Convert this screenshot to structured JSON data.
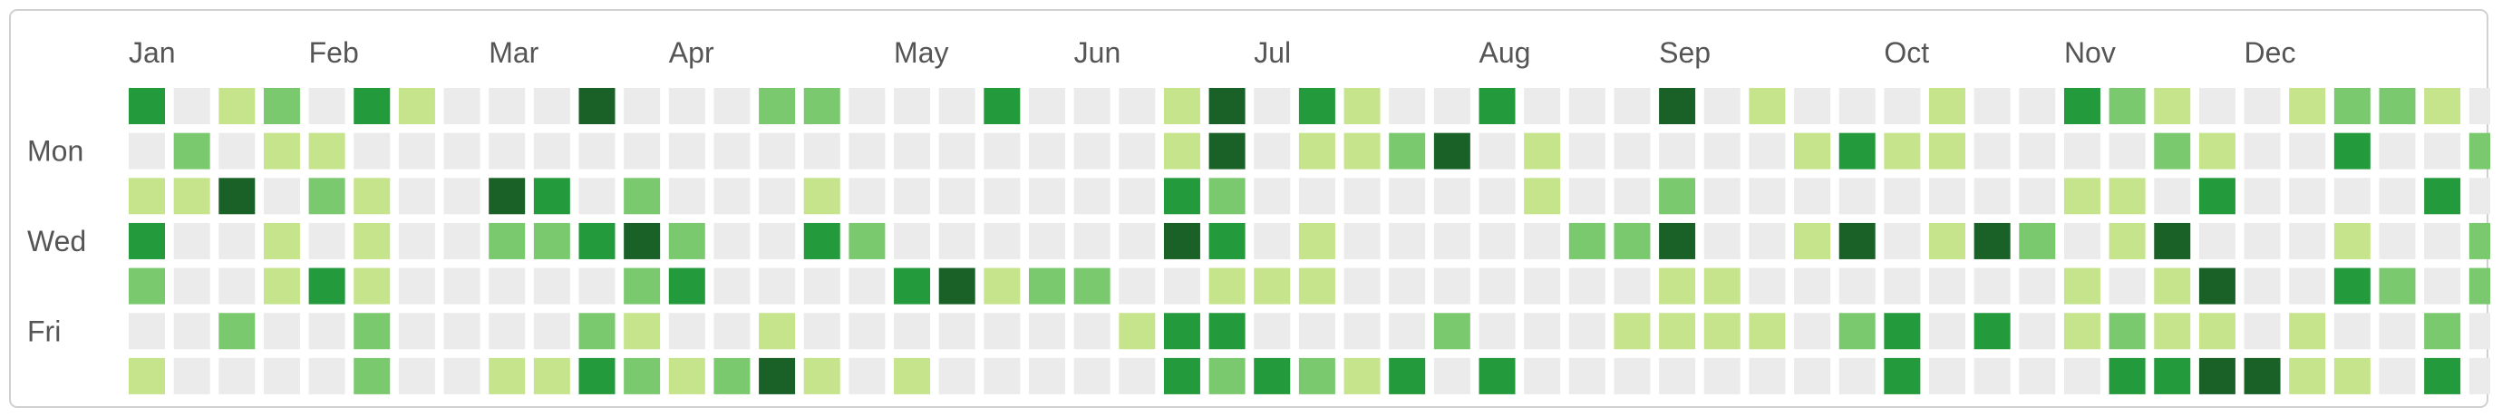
{
  "chart_data": {
    "type": "heatmap",
    "title": "",
    "months": [
      "Jan",
      "Feb",
      "Mar",
      "Apr",
      "May",
      "Jun",
      "Jul",
      "Aug",
      "Sep",
      "Oct",
      "Nov",
      "Dec"
    ],
    "month_start_week": [
      0,
      4,
      8,
      12,
      17,
      21,
      25,
      30,
      34,
      39,
      43,
      47
    ],
    "day_labels": [
      "",
      "Mon",
      "",
      "Wed",
      "",
      "Fri",
      ""
    ],
    "levels": [
      "#ebebeb",
      "#c6e48b",
      "#7bc96f",
      "#239a3b",
      "#196127"
    ],
    "weeks": 53,
    "grid": [
      "30120310004000220003000140310030004010001003210012210",
      "02011000000000000000000140112401000001311000021003002",
      "11402100430200010000000320000001002000000001103000030",
      "30010100223420032000000430100000224001401420140001002",
      "20013100000230000341220011100000001100000001014003202",
      "00200200002100100000001330000200011110230301211010020",
      "10000200113212410100000323213030000000030000334411030"
    ]
  }
}
